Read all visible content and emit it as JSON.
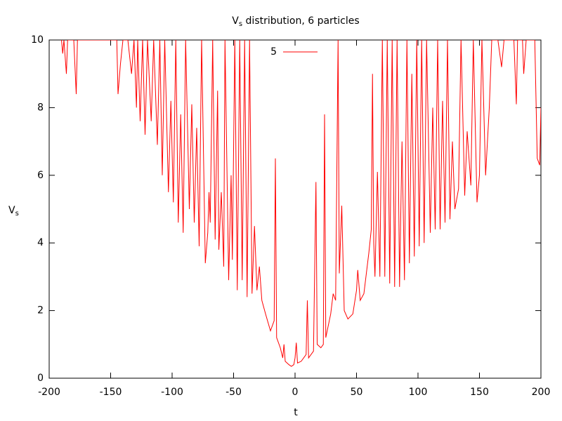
{
  "chart_data": {
    "type": "line",
    "title_parts": [
      "V",
      "s",
      " distribution, 6 particles"
    ],
    "xlabel": "t",
    "ylabel_parts": [
      "V",
      "s"
    ],
    "xlim": [
      -200,
      200
    ],
    "xticks": [
      -200,
      -150,
      -100,
      -50,
      0,
      50,
      100,
      150,
      200
    ],
    "ylim": [
      0,
      10
    ],
    "yticks": [
      0,
      2,
      4,
      6,
      8,
      10
    ],
    "legend": "top",
    "series": [
      {
        "name": "5",
        "color": "#ff0000",
        "x": [
          -190,
          -189,
          -188,
          -186,
          -185,
          -180,
          -178,
          -177,
          -170,
          -160,
          -152,
          -145,
          -144,
          -142,
          -140,
          -136,
          -133,
          -131,
          -129,
          -128,
          -126,
          -124,
          -122,
          -120,
          -117,
          -115,
          -112,
          -110,
          -108,
          -106,
          -103,
          -101,
          -99,
          -97,
          -95,
          -93,
          -91,
          -89,
          -86,
          -84,
          -82,
          -80,
          -78,
          -76,
          -73,
          -71,
          -70,
          -69,
          -67,
          -65,
          -63,
          -62,
          -60,
          -58,
          -57,
          -54,
          -52,
          -51,
          -49,
          -47,
          -45,
          -43,
          -41,
          -39,
          -37,
          -35,
          -33,
          -31,
          -29,
          -27,
          -24,
          -20,
          -17,
          -16,
          -15,
          -12,
          -10,
          -9,
          -8,
          -5,
          -3,
          -1,
          0,
          1,
          2,
          5,
          9,
          10,
          11,
          15,
          17,
          18,
          21,
          23,
          24,
          25,
          29,
          31,
          33,
          35,
          36,
          38,
          40,
          43,
          47,
          50,
          51,
          53,
          56,
          60,
          62,
          63,
          64,
          65,
          67,
          69,
          71,
          73,
          75,
          77,
          79,
          81,
          83,
          85,
          87,
          89,
          91,
          93,
          95,
          97,
          99,
          101,
          103,
          105,
          107,
          110,
          112,
          114,
          116,
          118,
          120,
          122,
          124,
          126,
          128,
          130,
          133,
          135,
          138,
          140,
          143,
          145,
          148,
          150,
          152,
          155,
          158,
          160,
          165,
          168,
          170,
          178,
          180,
          181,
          185,
          186,
          188,
          195,
          197,
          199,
          200
        ],
        "values": [
          10,
          9.6,
          10,
          9.0,
          10,
          10,
          8.4,
          10,
          10,
          10,
          10,
          10,
          8.4,
          9.3,
          10,
          10,
          9.0,
          10,
          8.0,
          10,
          7.6,
          10,
          7.2,
          10,
          7.6,
          10,
          6.9,
          10,
          6.0,
          10,
          5.5,
          8.2,
          5.2,
          10,
          4.6,
          7.8,
          4.3,
          10,
          5.0,
          8.1,
          4.6,
          7.4,
          3.9,
          10,
          3.4,
          4.3,
          5.5,
          4.6,
          10,
          4.1,
          8.5,
          3.8,
          5.5,
          3.3,
          10,
          2.9,
          6.0,
          3.5,
          10,
          2.6,
          10,
          2.9,
          10,
          2.4,
          10,
          2.5,
          4.5,
          2.6,
          3.3,
          2.3,
          1.9,
          1.4,
          1.7,
          6.5,
          1.2,
          0.9,
          0.6,
          1.0,
          0.5,
          0.4,
          0.35,
          0.4,
          0.6,
          1.05,
          0.45,
          0.5,
          0.7,
          2.3,
          0.6,
          0.8,
          5.8,
          1.0,
          0.9,
          1.0,
          7.8,
          1.2,
          1.9,
          2.5,
          2.3,
          10,
          3.1,
          5.1,
          2.0,
          1.75,
          1.9,
          2.6,
          3.2,
          2.3,
          2.5,
          3.7,
          4.4,
          9.0,
          4.0,
          3.0,
          6.1,
          3.0,
          10,
          3.0,
          10,
          2.8,
          10,
          2.7,
          10,
          2.7,
          7.0,
          2.9,
          10,
          3.4,
          9.0,
          3.6,
          10,
          3.9,
          10,
          4.0,
          10,
          4.3,
          8.0,
          4.4,
          10,
          4.4,
          8.2,
          4.6,
          10,
          4.7,
          7.0,
          5.0,
          5.6,
          10,
          5.4,
          7.3,
          5.7,
          10,
          5.2,
          6.0,
          10,
          6.0,
          8.0,
          10,
          10,
          9.2,
          10,
          10,
          8.1,
          10,
          10,
          9.0,
          10,
          10,
          6.5,
          6.3,
          8.0
        ]
      }
    ]
  }
}
